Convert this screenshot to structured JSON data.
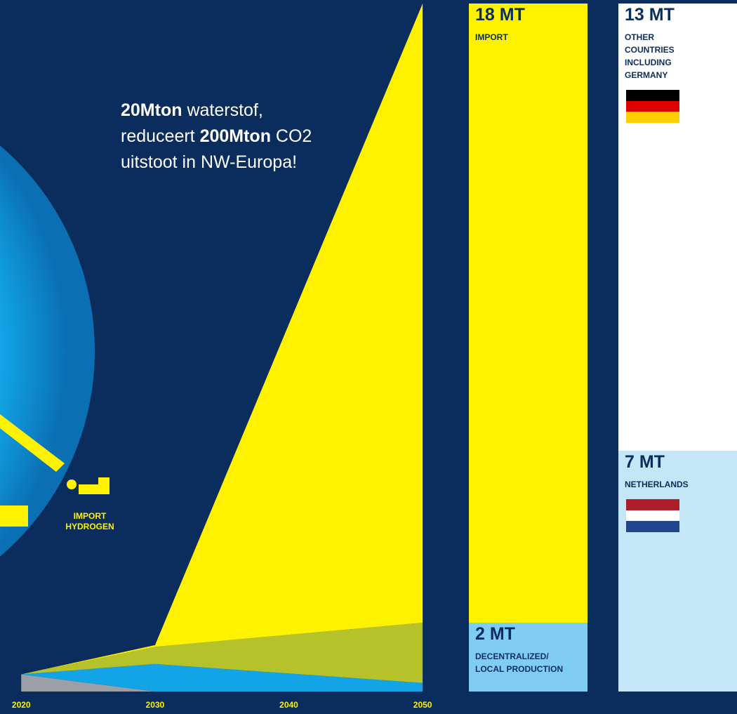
{
  "chart_data": {
    "type": "area",
    "x": [
      2020,
      2030,
      2050
    ],
    "xlim": [
      2019.2,
      2051.2
    ],
    "xticks": [
      2020,
      2030,
      2040,
      2050
    ],
    "ylim": [
      0,
      20
    ],
    "series": [
      {
        "color": "#9aa0a6",
        "values": [
          0.5,
          0,
          0
        ]
      },
      {
        "color": "#12a4e6",
        "values": [
          0,
          0.8,
          0.25
        ]
      },
      {
        "color": "#b5c22a",
        "values": [
          0,
          0.5,
          1.75
        ]
      },
      {
        "color": "#fff200",
        "values": [
          0,
          0.05,
          18
        ]
      }
    ]
  },
  "annotation": [
    [
      {
        "text": "20Mton",
        "bold": true
      },
      {
        "text": " waterstof,",
        "bold": false
      }
    ],
    [
      {
        "text": "reduceert ",
        "bold": false
      },
      {
        "text": "200Mton",
        "bold": true
      },
      {
        "text": " CO2",
        "bold": false
      }
    ],
    [
      {
        "text": "uitstoot in NW-Europa!",
        "bold": false
      }
    ]
  ],
  "globe_label": [
    "IMPORT",
    "HYDROGEN"
  ],
  "bars": [
    {
      "segments": [
        {
          "value": 2,
          "label": "2 MT",
          "caption": [
            "DECENTRALIZED/",
            "LOCAL PRODUCTION"
          ],
          "color": "#7fcdf3"
        },
        {
          "value": 18,
          "label": "18 MT",
          "caption": [
            "IMPORT"
          ],
          "color": "#fff200"
        }
      ]
    },
    {
      "segments": [
        {
          "value": 7,
          "label": "7 MT",
          "caption": [
            "NETHERLANDS"
          ],
          "color": "#c5e6f7"
        },
        {
          "value": 13,
          "label": "13 MT",
          "caption": [
            "OTHER",
            "COUNTRIES",
            "INCLUDING",
            "GERMANY"
          ],
          "color": "#ffffff"
        }
      ]
    }
  ]
}
